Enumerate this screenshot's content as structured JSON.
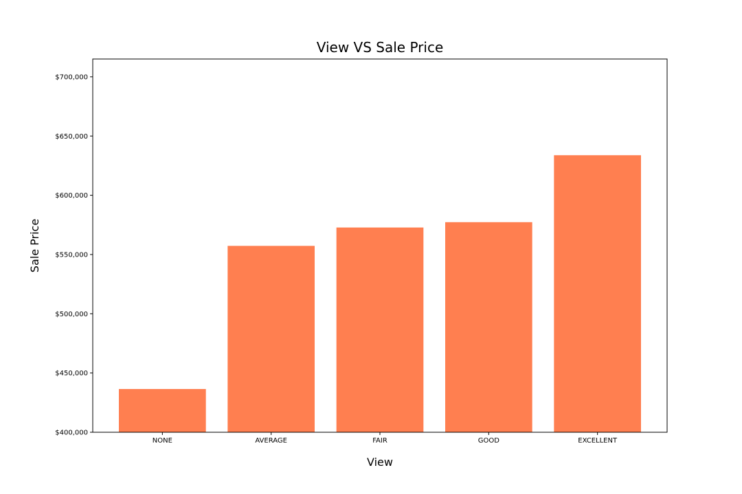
{
  "chart_data": {
    "type": "bar",
    "title": "View VS Sale Price",
    "xlabel": "View",
    "ylabel": "Sale Price",
    "categories": [
      "NONE",
      "AVERAGE",
      "FAIR",
      "GOOD",
      "EXCELLENT"
    ],
    "values": [
      436500,
      557300,
      572800,
      577300,
      633800
    ],
    "ylim": [
      400000,
      715000
    ],
    "yticks": [
      400000,
      450000,
      500000,
      550000,
      600000,
      650000,
      700000
    ],
    "ytick_labels": [
      "$400,000",
      "$450,000",
      "$500,000",
      "$550,000",
      "$600,000",
      "$650,000",
      "$700,000"
    ],
    "grid": false,
    "bar_color": "#ff7f50"
  }
}
